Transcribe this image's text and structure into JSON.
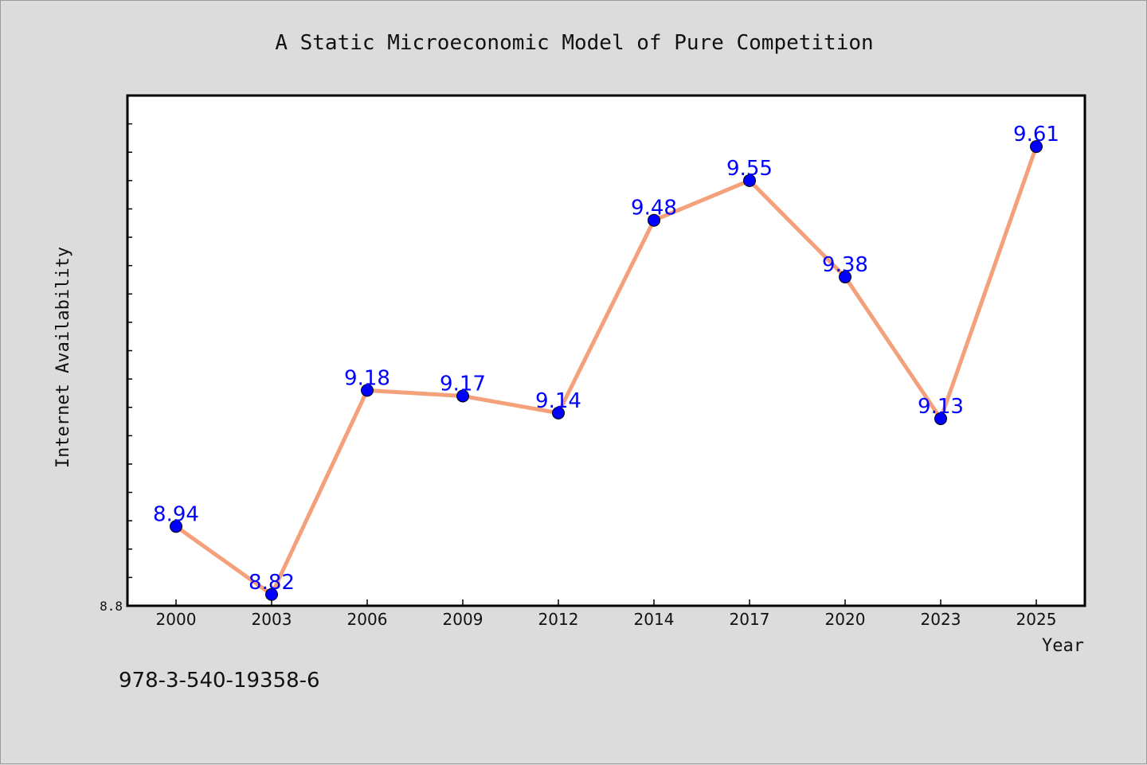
{
  "chart_data": {
    "type": "line",
    "title": "A Static Microeconomic Model of Pure Competition",
    "xlabel": "Year",
    "ylabel": "Internet Availability",
    "categories": [
      "2000",
      "2003",
      "2006",
      "2009",
      "2012",
      "2014",
      "2017",
      "2020",
      "2023",
      "2025"
    ],
    "series": [
      {
        "values": [
          8.94,
          8.82,
          9.18,
          9.17,
          9.14,
          9.48,
          9.55,
          9.38,
          9.13,
          9.61
        ]
      }
    ],
    "data_labels": [
      "8.94",
      "8.82",
      "9.18",
      "9.17",
      "9.14",
      "9.48",
      "9.55",
      "9.38",
      "9.13",
      "9.61"
    ],
    "ylim": [
      8.8,
      9.7
    ],
    "yticks_labeled": [
      "8.8"
    ],
    "grid": false,
    "legend": "none",
    "line_color": "#f4a07a",
    "marker_color": "#0000ff",
    "label_color": "#0000ff"
  },
  "footer_text": "978-3-540-19358-6"
}
